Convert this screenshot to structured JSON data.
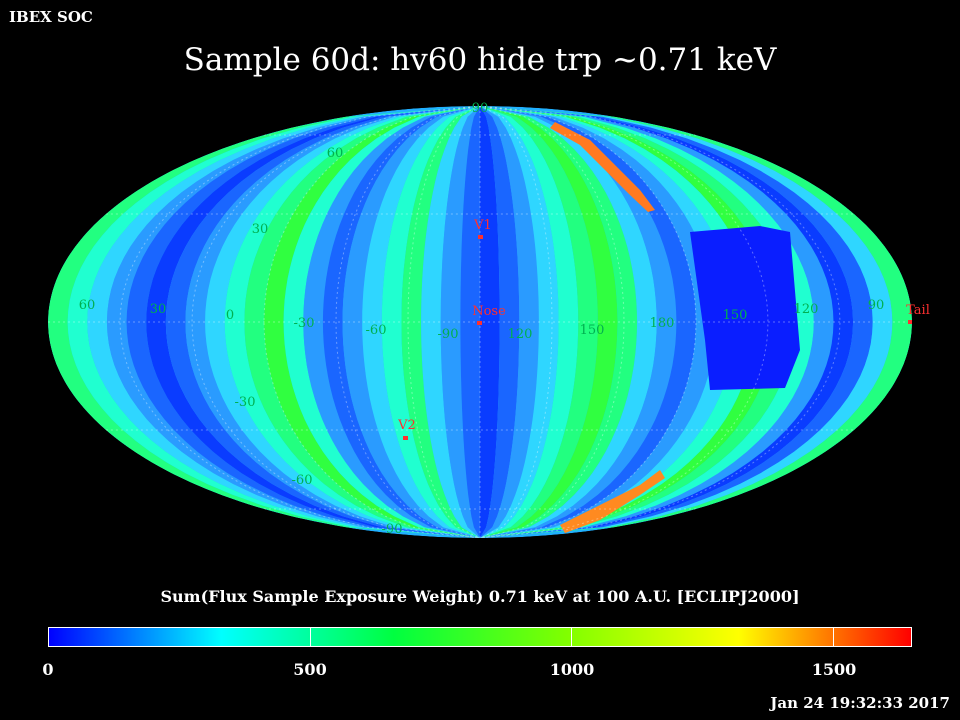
{
  "header": {
    "label": "IBEX SOC"
  },
  "title": "Sample 60d: hv60 hide trp ~0.71 keV",
  "colorbar": {
    "title": "Sum(Flux Sample Exposure Weight)  0.71 keV at 100 A.U. [ECLIPJ2000]",
    "range": [
      0,
      1650
    ],
    "ticks": [
      {
        "value": 0,
        "label": "0"
      },
      {
        "value": 500,
        "label": "500"
      },
      {
        "value": 1000,
        "label": "1000"
      },
      {
        "value": 1500,
        "label": "1500"
      }
    ],
    "colormap": [
      "#0000ff",
      "#00ffff",
      "#00ff40",
      "#80ff00",
      "#ffff00",
      "#ff0000"
    ]
  },
  "map": {
    "projection": "Mollweide",
    "center_longitude": 90,
    "longitude_labels": [
      "60",
      "30",
      "0",
      "-30",
      "-60",
      "-90",
      "120",
      "150",
      "180",
      "150",
      "120",
      "90"
    ],
    "latitude_labels": [
      "90",
      "60",
      "30",
      "-30",
      "-60",
      "-90"
    ],
    "markers": [
      {
        "name": "V1",
        "color": "#ff3030"
      },
      {
        "name": "Nose",
        "color": "#ff3030"
      },
      {
        "name": "V2",
        "color": "#ff3030"
      },
      {
        "name": "Tail",
        "color": "#ff3030"
      }
    ],
    "label_color": "#00b050"
  },
  "timestamp": "Jan 24 19:32:33 2017"
}
